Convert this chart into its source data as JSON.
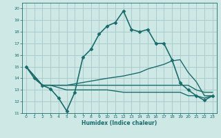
{
  "xlabel": "Humidex (Indice chaleur)",
  "xlim": [
    -0.5,
    23.5
  ],
  "ylim": [
    11,
    20.5
  ],
  "yticks": [
    11,
    12,
    13,
    14,
    15,
    16,
    17,
    18,
    19,
    20
  ],
  "xticks": [
    0,
    1,
    2,
    3,
    4,
    5,
    6,
    7,
    8,
    9,
    10,
    11,
    12,
    13,
    14,
    15,
    16,
    17,
    18,
    19,
    20,
    21,
    22,
    23
  ],
  "bg_color": "#cde8e5",
  "grid_color": "#aaccca",
  "line_color": "#1a6b6b",
  "series": [
    {
      "x": [
        0,
        1,
        2,
        3,
        4,
        5,
        6,
        7,
        8,
        9,
        10,
        11,
        12,
        13,
        14,
        15,
        16,
        17,
        18,
        19,
        20,
        21,
        22,
        23
      ],
      "y": [
        15.0,
        14.0,
        13.4,
        13.1,
        12.3,
        11.2,
        12.8,
        15.8,
        16.5,
        17.8,
        18.5,
        18.8,
        19.8,
        18.2,
        18.0,
        18.2,
        17.0,
        17.0,
        15.6,
        13.6,
        13.0,
        12.5,
        12.1,
        12.5
      ],
      "marker": "D",
      "markersize": 2.5,
      "linewidth": 1.2
    },
    {
      "x": [
        0,
        2,
        3,
        5,
        10,
        12,
        14,
        15,
        16,
        17,
        18,
        19,
        20,
        21,
        22,
        23
      ],
      "y": [
        15.0,
        13.4,
        13.4,
        13.4,
        14.0,
        14.2,
        14.5,
        14.8,
        15.0,
        15.2,
        15.5,
        15.6,
        14.5,
        13.7,
        12.5,
        12.5
      ],
      "marker": null,
      "markersize": 0,
      "linewidth": 1.0
    },
    {
      "x": [
        0,
        2,
        3,
        5,
        10,
        12,
        13,
        14,
        15,
        16,
        17,
        18,
        19,
        20,
        21,
        22,
        23
      ],
      "y": [
        15.0,
        13.4,
        13.4,
        13.4,
        13.4,
        13.4,
        13.4,
        13.4,
        13.4,
        13.4,
        13.4,
        13.4,
        13.4,
        13.4,
        13.0,
        12.8,
        12.8
      ],
      "marker": null,
      "markersize": 0,
      "linewidth": 1.0
    },
    {
      "x": [
        0,
        2,
        3,
        5,
        10,
        12,
        14,
        16,
        18,
        19,
        20,
        21,
        22,
        23
      ],
      "y": [
        15.0,
        13.4,
        13.4,
        13.0,
        13.0,
        12.8,
        12.8,
        12.8,
        12.8,
        12.8,
        12.5,
        12.5,
        12.3,
        12.5
      ],
      "marker": null,
      "markersize": 0,
      "linewidth": 1.0
    }
  ]
}
